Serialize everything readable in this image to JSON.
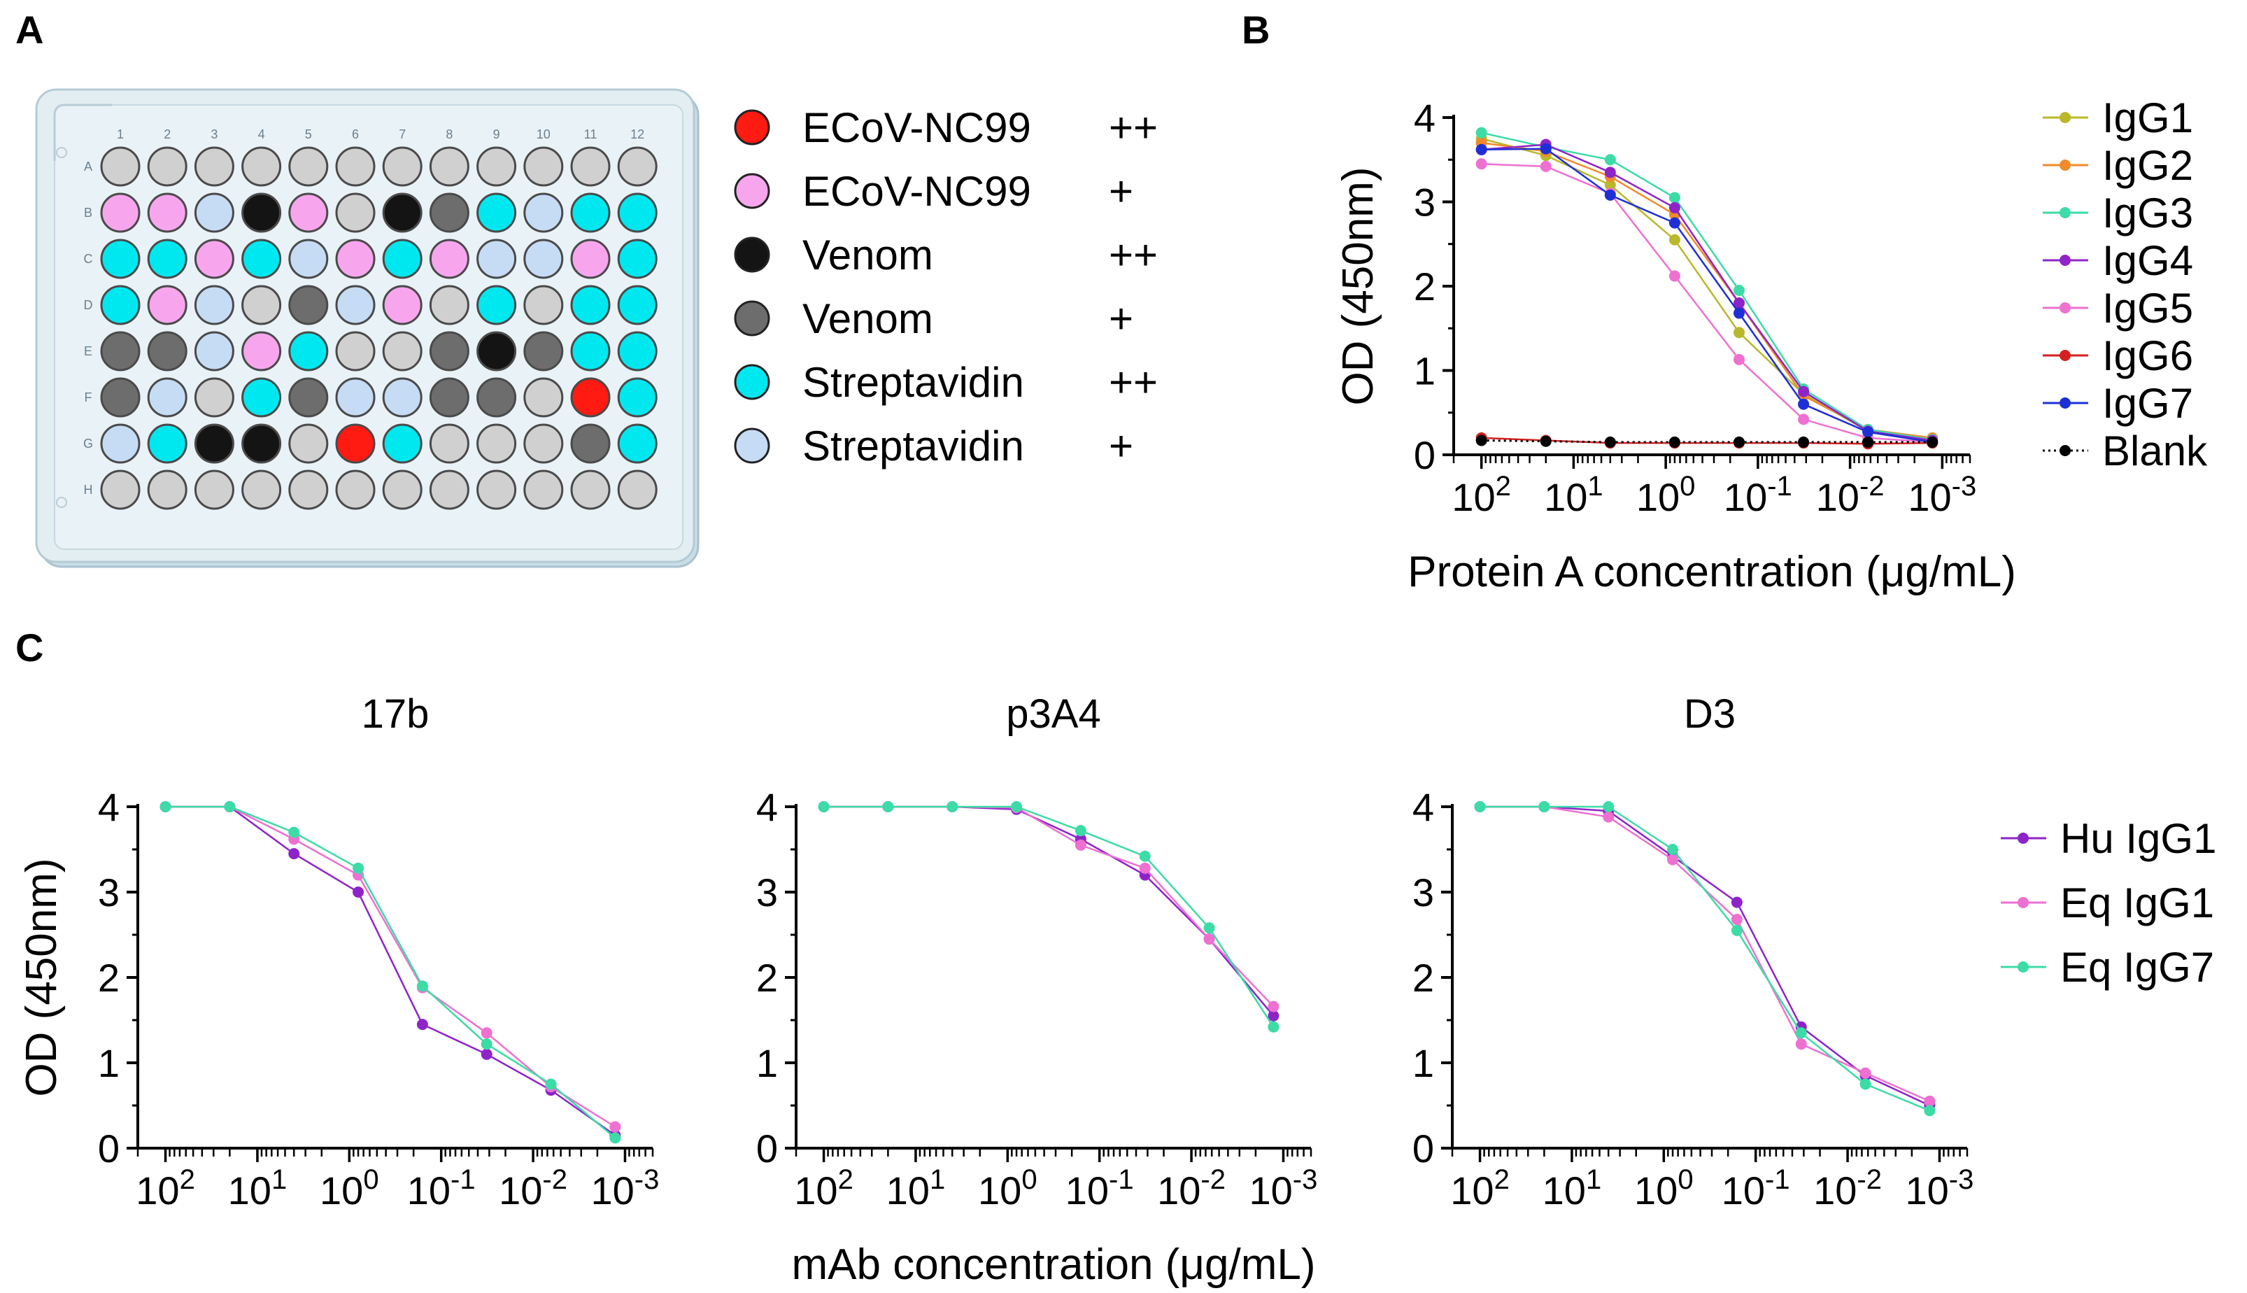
{
  "panels": {
    "a": "A",
    "b": "B",
    "c": "C"
  },
  "plate": {
    "columns": [
      "1",
      "2",
      "3",
      "4",
      "5",
      "6",
      "7",
      "8",
      "9",
      "10",
      "11",
      "12"
    ],
    "rows": [
      "A",
      "B",
      "C",
      "D",
      "E",
      "F",
      "G",
      "H"
    ],
    "grid": [
      [
        "e",
        "e",
        "e",
        "e",
        "e",
        "e",
        "e",
        "e",
        "e",
        "e",
        "e",
        "e"
      ],
      [
        "pk",
        "pk",
        "lb",
        "bk",
        "pk",
        "e",
        "bk",
        "dg",
        "cy",
        "lb",
        "cy",
        "cy"
      ],
      [
        "cy",
        "cy",
        "pk",
        "cy",
        "lb",
        "pk",
        "cy",
        "pk",
        "lb",
        "lb",
        "pk",
        "cy"
      ],
      [
        "cy",
        "pk",
        "lb",
        "e",
        "dg",
        "lb",
        "pk",
        "e",
        "cy",
        "e",
        "cy",
        "cy"
      ],
      [
        "dg",
        "dg",
        "lb",
        "pk",
        "cy",
        "e",
        "e",
        "dg",
        "bk",
        "dg",
        "cy",
        "cy"
      ],
      [
        "dg",
        "lb",
        "e",
        "cy",
        "dg",
        "lb",
        "lb",
        "dg",
        "dg",
        "e",
        "rd",
        "cy"
      ],
      [
        "lb",
        "cy",
        "bk",
        "bk",
        "e",
        "rd",
        "cy",
        "e",
        "e",
        "e",
        "dg",
        "cy"
      ],
      [
        "e",
        "e",
        "e",
        "e",
        "e",
        "e",
        "e",
        "e",
        "e",
        "e",
        "e",
        "e"
      ]
    ],
    "well_colors": {
      "e": "#d0d0d0",
      "pk": "#f7a6ee",
      "lb": "#c6dcf5",
      "bk": "#141414",
      "dg": "#6d6d6d",
      "cy": "#00e8ef",
      "rd": "#ff1a12"
    },
    "legend": [
      {
        "label": "ECoV-NC99",
        "level": "++",
        "color": "#ff1a12"
      },
      {
        "label": "ECoV-NC99",
        "level": "+",
        "color": "#f7a6ee"
      },
      {
        "label": "Venom",
        "level": "++",
        "color": "#141414"
      },
      {
        "label": "Venom",
        "level": "+",
        "color": "#6d6d6d"
      },
      {
        "label": "Streptavidin",
        "level": "++",
        "color": "#00e8ef"
      },
      {
        "label": "Streptavidin",
        "level": "+",
        "color": "#c6dcf5"
      }
    ]
  },
  "chart_data": [
    {
      "id": "B",
      "type": "line",
      "title": "",
      "xlabel": "Protein A concentration (μg/mL)",
      "ylabel": "OD (450nm)",
      "x_scale": "log10-reversed",
      "xlim": [
        200,
        0.0005
      ],
      "ylim": [
        0,
        4
      ],
      "yticks": [
        0,
        1,
        2,
        3,
        4
      ],
      "xticks": [
        {
          "value": 100,
          "label": "10",
          "exp": "2"
        },
        {
          "value": 10,
          "label": "10",
          "exp": "1"
        },
        {
          "value": 1,
          "label": "10",
          "exp": "0"
        },
        {
          "value": 0.1,
          "label": "10",
          "exp": "-1"
        },
        {
          "value": 0.01,
          "label": "10",
          "exp": "-2"
        },
        {
          "value": 0.001,
          "label": "10",
          "exp": "-3"
        }
      ],
      "x": [
        100,
        20,
        4,
        0.8,
        0.16,
        0.032,
        0.0064,
        0.00128
      ],
      "series": [
        {
          "name": "IgG1",
          "color": "#b8b82a",
          "dotted": false,
          "values": [
            3.75,
            3.55,
            3.2,
            2.55,
            1.45,
            0.72,
            0.28,
            0.18
          ]
        },
        {
          "name": "IgG2",
          "color": "#f08a2a",
          "dotted": false,
          "values": [
            3.7,
            3.6,
            3.3,
            2.85,
            1.8,
            0.7,
            0.3,
            0.2
          ]
        },
        {
          "name": "IgG3",
          "color": "#3ddba6",
          "dotted": false,
          "values": [
            3.82,
            3.65,
            3.5,
            3.05,
            1.95,
            0.78,
            0.3,
            0.18
          ]
        },
        {
          "name": "IgG4",
          "color": "#8e24c8",
          "dotted": false,
          "values": [
            3.62,
            3.68,
            3.35,
            2.93,
            1.8,
            0.75,
            0.28,
            0.17
          ]
        },
        {
          "name": "IgG5",
          "color": "#ee70d0",
          "dotted": false,
          "values": [
            3.45,
            3.42,
            3.1,
            2.12,
            1.13,
            0.42,
            0.2,
            0.15
          ]
        },
        {
          "name": "IgG6",
          "color": "#d42020",
          "dotted": false,
          "values": [
            0.2,
            0.17,
            0.14,
            0.14,
            0.14,
            0.14,
            0.13,
            0.14
          ]
        },
        {
          "name": "IgG7",
          "color": "#1f2fd6",
          "dotted": false,
          "values": [
            3.62,
            3.63,
            3.08,
            2.75,
            1.68,
            0.6,
            0.27,
            0.15
          ]
        },
        {
          "name": "Blank",
          "color": "#000000",
          "dotted": true,
          "values": [
            0.17,
            0.16,
            0.15,
            0.15,
            0.15,
            0.15,
            0.15,
            0.15
          ]
        }
      ]
    },
    {
      "id": "C1",
      "type": "line",
      "title": "17b",
      "xlabel": "",
      "ylabel": "OD (450nm)",
      "x_scale": "log10-reversed",
      "xlim": [
        200,
        0.0005
      ],
      "ylim": [
        0,
        4
      ],
      "yticks": [
        0,
        1,
        2,
        3,
        4
      ],
      "xticks": [
        {
          "value": 100,
          "label": "10",
          "exp": "2"
        },
        {
          "value": 10,
          "label": "10",
          "exp": "1"
        },
        {
          "value": 1,
          "label": "10",
          "exp": "0"
        },
        {
          "value": 0.1,
          "label": "10",
          "exp": "-1"
        },
        {
          "value": 0.01,
          "label": "10",
          "exp": "-2"
        },
        {
          "value": 0.001,
          "label": "10",
          "exp": "-3"
        }
      ],
      "x": [
        100,
        20,
        4,
        0.8,
        0.16,
        0.032,
        0.0064,
        0.00128
      ],
      "series": [
        {
          "name": "Hu IgG1",
          "color": "#8e24c8",
          "dotted": false,
          "values": [
            4.0,
            4.0,
            3.45,
            3.0,
            1.45,
            1.1,
            0.68,
            0.15
          ]
        },
        {
          "name": "Eq IgG1",
          "color": "#ee70d0",
          "dotted": false,
          "values": [
            4.0,
            4.0,
            3.62,
            3.2,
            1.88,
            1.35,
            0.72,
            0.25
          ]
        },
        {
          "name": "Eq IgG7",
          "color": "#3ddba6",
          "dotted": false,
          "values": [
            4.0,
            4.0,
            3.7,
            3.28,
            1.9,
            1.22,
            0.75,
            0.12
          ]
        }
      ]
    },
    {
      "id": "C2",
      "type": "line",
      "title": "p3A4",
      "xlabel": "mAb concentration (μg/mL)",
      "ylabel": "",
      "x_scale": "log10-reversed",
      "xlim": [
        200,
        0.0005
      ],
      "ylim": [
        0,
        4
      ],
      "yticks": [
        0,
        1,
        2,
        3,
        4
      ],
      "xticks": [
        {
          "value": 100,
          "label": "10",
          "exp": "2"
        },
        {
          "value": 10,
          "label": "10",
          "exp": "1"
        },
        {
          "value": 1,
          "label": "10",
          "exp": "0"
        },
        {
          "value": 0.1,
          "label": "10",
          "exp": "-1"
        },
        {
          "value": 0.01,
          "label": "10",
          "exp": "-2"
        },
        {
          "value": 0.001,
          "label": "10",
          "exp": "-3"
        }
      ],
      "x": [
        100,
        20,
        4,
        0.8,
        0.16,
        0.032,
        0.0064,
        0.00128
      ],
      "series": [
        {
          "name": "Hu IgG1",
          "color": "#8e24c8",
          "dotted": false,
          "values": [
            4.0,
            4.0,
            4.0,
            3.97,
            3.62,
            3.2,
            2.45,
            1.55
          ]
        },
        {
          "name": "Eq IgG1",
          "color": "#ee70d0",
          "dotted": false,
          "values": [
            4.0,
            4.0,
            4.0,
            3.99,
            3.55,
            3.28,
            2.45,
            1.66
          ]
        },
        {
          "name": "Eq IgG7",
          "color": "#3ddba6",
          "dotted": false,
          "values": [
            4.0,
            4.0,
            4.0,
            4.0,
            3.72,
            3.42,
            2.58,
            1.42
          ]
        }
      ]
    },
    {
      "id": "C3",
      "type": "line",
      "title": "D3",
      "xlabel": "",
      "ylabel": "",
      "x_scale": "log10-reversed",
      "xlim": [
        200,
        0.0005
      ],
      "ylim": [
        0,
        4
      ],
      "yticks": [
        0,
        1,
        2,
        3,
        4
      ],
      "xticks": [
        {
          "value": 100,
          "label": "10",
          "exp": "2"
        },
        {
          "value": 10,
          "label": "10",
          "exp": "1"
        },
        {
          "value": 1,
          "label": "10",
          "exp": "0"
        },
        {
          "value": 0.1,
          "label": "10",
          "exp": "-1"
        },
        {
          "value": 0.01,
          "label": "10",
          "exp": "-2"
        },
        {
          "value": 0.001,
          "label": "10",
          "exp": "-3"
        }
      ],
      "x": [
        100,
        20,
        4,
        0.8,
        0.16,
        0.032,
        0.0064,
        0.00128
      ],
      "series": [
        {
          "name": "Hu IgG1",
          "color": "#8e24c8",
          "dotted": false,
          "values": [
            4.0,
            4.0,
            3.95,
            3.42,
            2.88,
            1.42,
            0.85,
            0.5
          ]
        },
        {
          "name": "Eq IgG1",
          "color": "#ee70d0",
          "dotted": false,
          "values": [
            4.0,
            4.0,
            3.88,
            3.38,
            2.68,
            1.22,
            0.88,
            0.55
          ]
        },
        {
          "name": "Eq IgG7",
          "color": "#3ddba6",
          "dotted": false,
          "values": [
            4.0,
            4.0,
            4.0,
            3.5,
            2.55,
            1.35,
            0.75,
            0.44
          ]
        }
      ]
    }
  ]
}
